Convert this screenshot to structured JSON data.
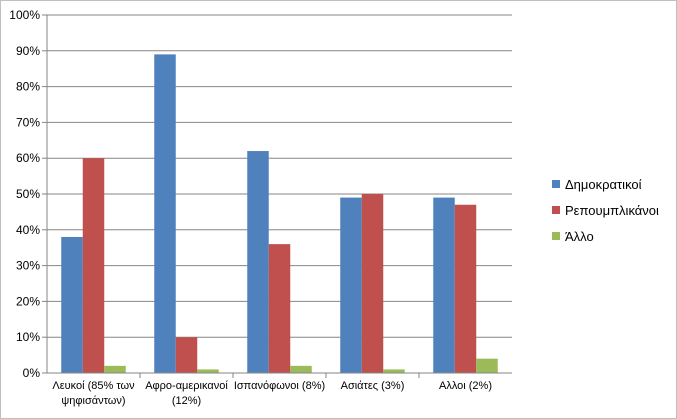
{
  "chart_data": {
    "type": "bar",
    "categories": [
      [
        "Λευκοί (85% των",
        "ψηφισάντων)"
      ],
      [
        "Αφρο-αμερικανοί",
        "(12%)"
      ],
      [
        "Ισπανόφωνοι (8%)"
      ],
      [
        "Ασιάτες (3%)"
      ],
      [
        "Αλλοι (2%)"
      ]
    ],
    "series": [
      {
        "name": "Δημοκρατικοί",
        "color": "#4f81bd",
        "values": [
          38,
          89,
          62,
          49,
          49
        ]
      },
      {
        "name": "Ρεπουμπλικάνοι",
        "color": "#c0504d",
        "values": [
          60,
          10,
          36,
          50,
          47
        ]
      },
      {
        "name": "Άλλο",
        "color": "#9bbb59",
        "values": [
          2,
          1,
          2,
          1,
          4
        ]
      }
    ],
    "y_ticks": [
      "0%",
      "10%",
      "20%",
      "30%",
      "40%",
      "50%",
      "60%",
      "70%",
      "80%",
      "90%",
      "100%"
    ],
    "ylim": [
      0,
      100
    ],
    "grid": true,
    "legend_position": "right"
  }
}
